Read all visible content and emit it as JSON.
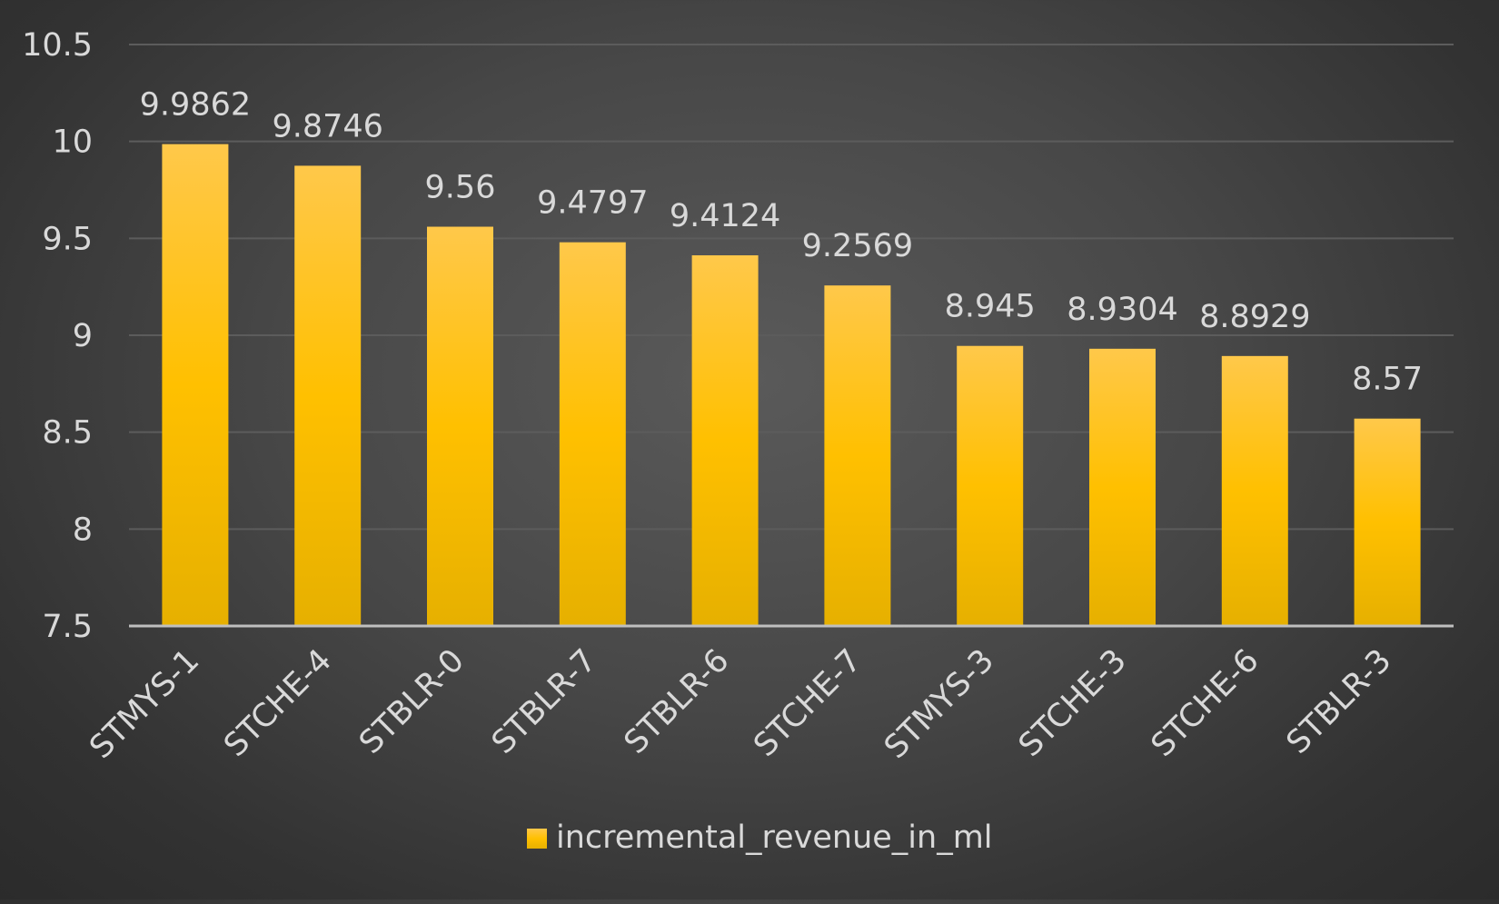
{
  "chart_data": {
    "type": "bar",
    "title": "",
    "xlabel": "",
    "ylabel": "",
    "categories": [
      "STMYS-1",
      "STCHE-4",
      "STBLR-0",
      "STBLR-7",
      "STBLR-6",
      "STCHE-7",
      "STMYS-3",
      "STCHE-3",
      "STCHE-6",
      "STBLR-3"
    ],
    "series": [
      {
        "name": "incremental_revenue_in_ml",
        "values": [
          9.9862,
          9.8746,
          9.56,
          9.4797,
          9.4124,
          9.2569,
          8.945,
          8.9304,
          8.8929,
          8.57
        ],
        "labels": [
          "9.9862",
          "9.8746",
          "9.56",
          "9.4797",
          "9.4124",
          "9.2569",
          "8.945",
          "8.9304",
          "8.8929",
          "8.57"
        ]
      }
    ],
    "ylim": [
      7.5,
      10.5
    ],
    "yticks": [
      "7.5",
      "8",
      "8.5",
      "9",
      "9.5",
      "10",
      "10.5"
    ],
    "ytick_values": [
      7.5,
      8,
      8.5,
      9,
      9.5,
      10,
      10.5
    ],
    "grid": true,
    "legend_position": "bottom",
    "colors": {
      "bar_top": "#ffc84a",
      "bar_mid": "#ffc000",
      "bar_bottom": "#e6b000",
      "gridline": "#5c5c5c",
      "axis": "#bfbfbf",
      "text": "#d9d9d9"
    }
  }
}
